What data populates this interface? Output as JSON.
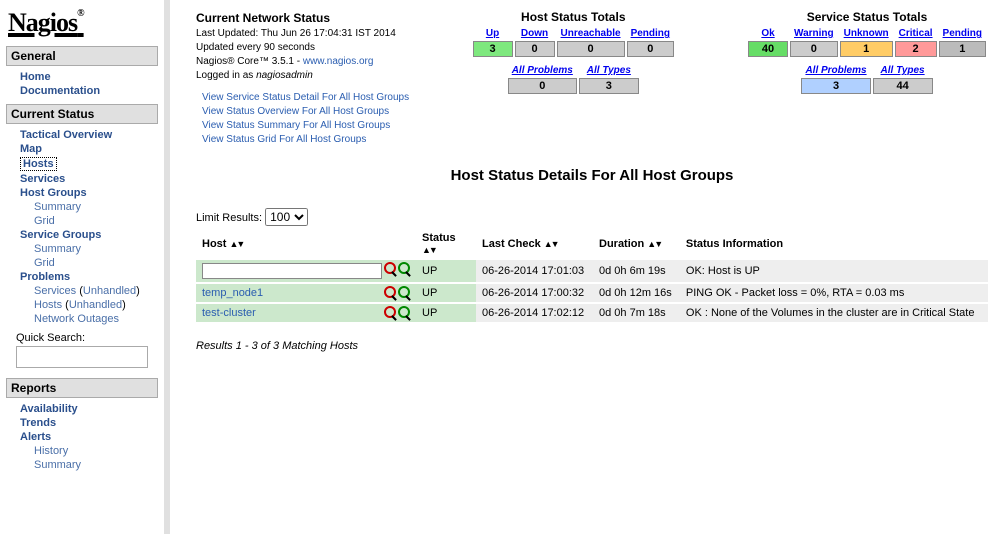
{
  "logo": "Nagios",
  "sidebar": {
    "sections": [
      {
        "title": "General",
        "items": [
          {
            "label": "Home"
          },
          {
            "label": "Documentation"
          }
        ]
      },
      {
        "title": "Current Status",
        "items": [
          {
            "label": "Tactical Overview"
          },
          {
            "label": "Map"
          },
          {
            "label": "Hosts",
            "selected": true
          },
          {
            "label": "Services"
          },
          {
            "label": "Host Groups"
          },
          {
            "label": "Summary",
            "sub": true
          },
          {
            "label": "Grid",
            "sub": true
          },
          {
            "label": "Service Groups"
          },
          {
            "label": "Summary",
            "sub": true
          },
          {
            "label": "Grid",
            "sub": true
          },
          {
            "label": "Problems"
          },
          {
            "label": "Services (Unhandled)",
            "sub": true,
            "split": true
          },
          {
            "label": "Hosts (Unhandled)",
            "sub": true,
            "split2": true
          },
          {
            "label": "Network Outages",
            "sub": true
          }
        ]
      },
      {
        "title": "Reports",
        "items": [
          {
            "label": "Availability"
          },
          {
            "label": "Trends"
          },
          {
            "label": "Alerts"
          },
          {
            "label": "History",
            "sub": true
          },
          {
            "label": "Summary",
            "sub": true
          }
        ]
      }
    ],
    "quick_search_label": "Quick Search:"
  },
  "status": {
    "title": "Current Network Status",
    "last_updated": "Last Updated: Thu Jun 26 17:04:31 IST 2014",
    "update_interval": "Updated every 90 seconds",
    "version": "Nagios® Core™ 3.5.1 - ",
    "version_link": "www.nagios.org",
    "logged_in_prefix": "Logged in as ",
    "logged_in_user": "nagiosadmin",
    "links": [
      "View Service Status Detail For All Host Groups",
      "View Status Overview For All Host Groups",
      "View Status Summary For All Host Groups",
      "View Status Grid For All Host Groups"
    ]
  },
  "host_totals": {
    "title": "Host Status Totals",
    "headers": [
      "Up",
      "Down",
      "Unreachable",
      "Pending"
    ],
    "values": [
      "3",
      "0",
      "0",
      "0"
    ],
    "classes": [
      "c-green",
      "c-gray",
      "c-gray",
      "c-gray"
    ],
    "sub_headers": [
      "All Problems",
      "All Types"
    ],
    "sub_values": [
      "0",
      "3"
    ],
    "sub_classes": [
      "c-gray",
      "c-gray"
    ]
  },
  "service_totals": {
    "title": "Service Status Totals",
    "headers": [
      "Ok",
      "Warning",
      "Unknown",
      "Critical",
      "Pending"
    ],
    "values": [
      "40",
      "0",
      "1",
      "2",
      "1"
    ],
    "classes": [
      "c-lgreen",
      "c-gray",
      "c-orange",
      "c-red",
      "c-lgray"
    ],
    "sub_headers": [
      "All Problems",
      "All Types"
    ],
    "sub_values": [
      "3",
      "44"
    ],
    "sub_classes": [
      "c-blue",
      "c-gray"
    ]
  },
  "page_title": "Host Status Details For All Host Groups",
  "limit_label": "Limit Results:",
  "limit_value": "100",
  "table": {
    "columns": [
      "Host",
      "Status",
      "Last Check",
      "Duration",
      "Status Information"
    ],
    "rows": [
      {
        "host": "",
        "input": true,
        "status": "UP",
        "last_check": "06-26-2014 17:01:03",
        "duration": "0d 0h 6m 19s",
        "info": "OK: Host is UP"
      },
      {
        "host": "temp_node1",
        "status": "UP",
        "last_check": "06-26-2014 17:00:32",
        "duration": "0d 0h 12m 16s",
        "info": "PING OK - Packet loss = 0%, RTA = 0.03 ms"
      },
      {
        "host": "test-cluster",
        "status": "UP",
        "last_check": "06-26-2014 17:02:12",
        "duration": "0d 0h 7m 18s",
        "info": "OK : None of the Volumes in the cluster are in Critical State"
      }
    ]
  },
  "results_text": "Results 1 - 3 of 3 Matching Hosts"
}
